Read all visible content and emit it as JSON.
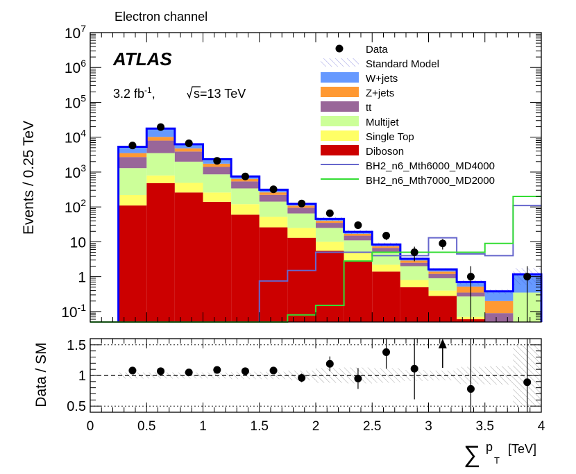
{
  "chart_data": [
    {
      "type": "bar",
      "subtype": "stacked-histogram-log",
      "title": "Electron channel",
      "atlas_label": "ATLAS",
      "lumi_label": "3.2 fb",
      "lumi_superscript": "-1",
      "lumi_sep": ",",
      "energy_root": "s",
      "energy_value": "=13 TeV",
      "xlabel_sum": "∑",
      "xlabel_var": "p",
      "xlabel_sub": "T",
      "xlabel_unit": "[TeV]",
      "ylabel": "Events / 0.25 TeV",
      "xlim": [
        0,
        4
      ],
      "ylim_log": [
        0.05,
        10000000
      ],
      "bin_edges": [
        0.25,
        0.5,
        0.75,
        1.0,
        1.25,
        1.5,
        1.75,
        2.0,
        2.25,
        2.5,
        2.75,
        3.0,
        3.25,
        3.5,
        3.75,
        4.0
      ],
      "x_ticks": [
        "0",
        "0.5",
        "1",
        "1.5",
        "2",
        "2.5",
        "3",
        "3.5",
        "4"
      ],
      "y_ticks": [
        {
          "base": "10",
          "exp": "-1",
          "value": 0.1
        },
        {
          "base": "1",
          "exp": "",
          "value": 1
        },
        {
          "base": "10",
          "exp": "",
          "value": 10
        },
        {
          "base": "10",
          "exp": "2",
          "value": 100
        },
        {
          "base": "10",
          "exp": "3",
          "value": 1000
        },
        {
          "base": "10",
          "exp": "4",
          "value": 10000
        },
        {
          "base": "10",
          "exp": "5",
          "value": 100000
        },
        {
          "base": "10",
          "exp": "6",
          "value": 1000000
        },
        {
          "base": "10",
          "exp": "7",
          "value": 10000000
        }
      ],
      "stack_series": [
        {
          "name": "Diboson",
          "color": "#cc0000",
          "values": [
            110,
            480,
            260,
            140,
            60,
            26,
            13,
            5.5,
            2.8,
            1.4,
            0.5,
            0.28,
            0.06,
            0.0,
            0.0
          ]
        },
        {
          "name": "Single Top",
          "color": "#ffff66",
          "values": [
            110,
            320,
            230,
            120,
            60,
            26,
            12,
            4.5,
            2.2,
            0.8,
            0.3,
            0.12,
            0.01,
            0.0,
            0.0
          ]
        },
        {
          "name": "Multijet",
          "color": "#ccff99",
          "values": [
            1080,
            2700,
            1500,
            600,
            220,
            90,
            40,
            15,
            6,
            3,
            1.2,
            0.5,
            0.2,
            0.0,
            0.35
          ]
        },
        {
          "name": "tt",
          "color": "#996699",
          "values": [
            1400,
            4500,
            1900,
            550,
            200,
            80,
            30,
            10,
            4,
            1.5,
            0.5,
            0.3,
            0.08,
            0.09,
            0.0
          ]
        },
        {
          "name": "Z+jets",
          "color": "#ff9933",
          "values": [
            800,
            2200,
            900,
            330,
            100,
            40,
            14,
            5,
            2,
            0.8,
            0.4,
            0.2,
            0.17,
            0.11,
            0.0
          ]
        },
        {
          "name": "W+jets",
          "color": "#6699ff",
          "values": [
            1800,
            7500,
            1500,
            600,
            110,
            50,
            14,
            5.5,
            2.2,
            0.9,
            0.35,
            0.22,
            0.18,
            0.18,
            0.82
          ]
        }
      ],
      "standard_model": {
        "name": "Standard Model",
        "color": "#0000ff",
        "values": [
          5300,
          17700,
          6290,
          2340,
          750,
          312,
          123,
          45.5,
          19.2,
          8.4,
          3.25,
          1.62,
          0.7,
          0.38,
          1.17
        ]
      },
      "signal_series": [
        {
          "name": "BH2_n6_Mth6000_MD4000",
          "color": "#6666cc",
          "values": [
            0,
            0,
            0,
            0,
            0,
            0.75,
            1.5,
            5,
            5,
            4,
            4,
            13,
            4.5,
            4,
            110
          ]
        },
        {
          "name": "BH2_n6_Mth7000_MD2000",
          "color": "#33dd33",
          "values": [
            0,
            0,
            0,
            0,
            0,
            0,
            0.08,
            0.15,
            2.8,
            5,
            5,
            5,
            5,
            9,
            200
          ]
        }
      ],
      "data_points": {
        "name": "Data",
        "x": [
          0.375,
          0.625,
          0.875,
          1.125,
          1.375,
          1.625,
          1.875,
          2.125,
          2.375,
          2.625,
          2.875,
          3.125,
          3.375,
          3.875
        ],
        "y": [
          5800,
          19500,
          6700,
          2100,
          750,
          320,
          125,
          66,
          30,
          15,
          5,
          9,
          1,
          1
        ]
      },
      "legend": [
        {
          "label": "Data",
          "kind": "marker",
          "color": "#000000"
        },
        {
          "label": "Standard Model",
          "kind": "hatch",
          "color": "#4444cc"
        },
        {
          "label": "W+jets",
          "kind": "box",
          "color": "#6699ff"
        },
        {
          "label": "Z+jets",
          "kind": "box",
          "color": "#ff9933"
        },
        {
          "label": "tt",
          "kind": "box",
          "color": "#996699"
        },
        {
          "label": "Multijet",
          "kind": "box",
          "color": "#ccff99"
        },
        {
          "label": "Single Top",
          "kind": "box",
          "color": "#ffff66"
        },
        {
          "label": "Diboson",
          "kind": "box",
          "color": "#cc0000"
        },
        {
          "label": "BH2_n6_Mth6000_MD4000",
          "kind": "line",
          "color": "#6666cc"
        },
        {
          "label": "BH2_n6_Mth7000_MD2000",
          "kind": "line",
          "color": "#33dd33"
        }
      ],
      "legend_position": "top-right"
    },
    {
      "type": "scatter",
      "subtype": "ratio",
      "ylabel": "Data / SM",
      "ylim": [
        0.4,
        1.6
      ],
      "y_ticks": [
        "0.5",
        "1",
        "1.5"
      ],
      "y_tick_values": [
        0.5,
        1,
        1.5
      ],
      "reference_lines": [
        0.5,
        1.0,
        1.5
      ],
      "points": {
        "x": [
          0.375,
          0.625,
          0.875,
          1.125,
          1.375,
          1.625,
          1.875,
          2.125,
          2.375,
          2.625,
          2.875,
          3.375,
          3.875
        ],
        "y": [
          1.08,
          1.07,
          1.05,
          1.09,
          1.07,
          1.08,
          0.96,
          1.19,
          0.95,
          1.38,
          1.11,
          0.78,
          0.89
        ],
        "err_low": [
          0.01,
          0.01,
          0.01,
          0.02,
          0.03,
          0.05,
          0.07,
          0.12,
          0.17,
          0.27,
          0.5,
          0.8,
          0.89
        ],
        "err_high": [
          0.01,
          0.01,
          0.01,
          0.02,
          0.03,
          0.05,
          0.07,
          0.12,
          0.17,
          0.27,
          0.5,
          1.0,
          1.0
        ]
      },
      "off_scale_arrow_x": 3.125,
      "uncertainty_band": [
        0.05,
        0.05,
        0.05,
        0.05,
        0.06,
        0.06,
        0.08,
        0.12,
        0.13,
        0.12,
        0.09,
        0.08,
        0.14,
        0.15,
        0.5
      ]
    }
  ]
}
